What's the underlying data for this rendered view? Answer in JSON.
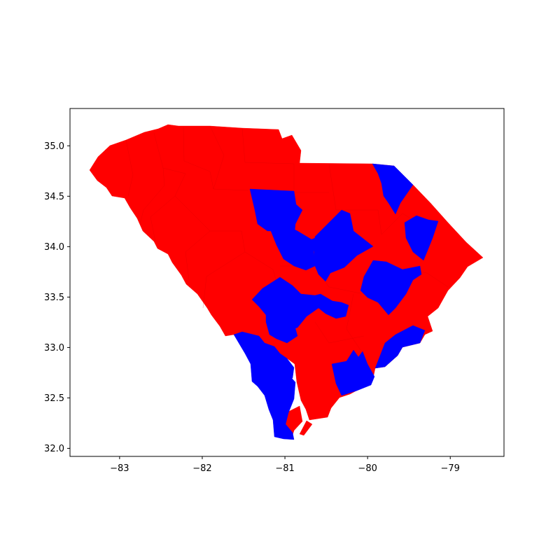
{
  "map": {
    "xlim": [
      -83.6,
      -78.35
    ],
    "ylim": [
      31.92,
      35.37
    ],
    "x_ticks": [
      {
        "value": -83,
        "label": "−83"
      },
      {
        "value": -82,
        "label": "−82"
      },
      {
        "value": -81,
        "label": "−81"
      },
      {
        "value": -80,
        "label": "−80"
      },
      {
        "value": -79,
        "label": "−79"
      }
    ],
    "y_ticks": [
      {
        "value": 32.0,
        "label": "32.0"
      },
      {
        "value": 32.5,
        "label": "32.5"
      },
      {
        "value": 33.0,
        "label": "33.0"
      },
      {
        "value": 33.5,
        "label": "33.5"
      },
      {
        "value": 34.0,
        "label": "34.0"
      },
      {
        "value": 34.5,
        "label": "34.5"
      },
      {
        "value": 35.0,
        "label": "35.0"
      }
    ],
    "colors": {
      "red": "#ff0000",
      "blue": "#0000ff",
      "axes": "#000000"
    }
  }
}
